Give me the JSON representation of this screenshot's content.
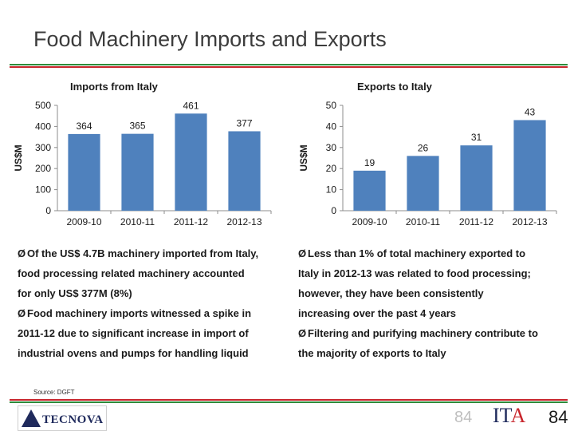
{
  "title": "Food Machinery Imports and Exports",
  "chart_data": [
    {
      "type": "bar",
      "title": "Imports from Italy",
      "ylabel": "US$M",
      "xlabel": "",
      "categories": [
        "2009-10",
        "2010-11",
        "2011-12",
        "2012-13"
      ],
      "values": [
        364,
        365,
        461,
        377
      ],
      "ylim": [
        0,
        500
      ],
      "yticks": [
        0,
        100,
        200,
        300,
        400,
        500
      ],
      "color": "#4f81bd",
      "data_labels": true,
      "grid": false
    },
    {
      "type": "bar",
      "title": "Exports to Italy",
      "ylabel": "US$M",
      "xlabel": "",
      "categories": [
        "2009-10",
        "2010-11",
        "2011-12",
        "2012-13"
      ],
      "values": [
        19,
        26,
        31,
        43
      ],
      "ylim": [
        0,
        50
      ],
      "yticks": [
        0,
        10,
        20,
        30,
        40,
        50
      ],
      "color": "#4f81bd",
      "data_labels": true,
      "grid": false
    }
  ],
  "bullets_left": [
    {
      "first": "Of the US$ 4.7B machinery imported from Italy,",
      "rest": [
        "food processing related machinery accounted",
        "for only US$ 377M (8%)"
      ]
    },
    {
      "first": "Food machinery imports witnessed a spike in",
      "rest": [
        "2011-12 due to significant increase in import of",
        "industrial ovens and pumps for handling liquid"
      ]
    }
  ],
  "bullets_right": [
    {
      "first": "Less than 1% of total machinery exported to",
      "rest": [
        "Italy in 2012-13 was related to food processing;",
        "however, they have been consistently",
        "increasing over the past 4 years"
      ]
    },
    {
      "first": "Filtering and purifying machinery contribute to",
      "rest": [
        "the majority of exports to Italy"
      ]
    }
  ],
  "bullet_marker": "Ø",
  "source": "Source: DGFT",
  "footer": {
    "logo_left": "TECNOVA",
    "page_number_faded": "84",
    "logo_right_prefix": "IT",
    "logo_right_accent": "A",
    "page_number": "84"
  },
  "colors": {
    "bar": "#4f81bd",
    "rule_green": "#2e8b3a",
    "rule_red": "#c8252c",
    "title": "#3c3c3c"
  }
}
